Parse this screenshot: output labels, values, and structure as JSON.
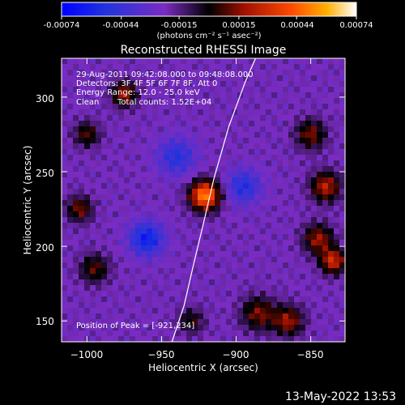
{
  "colorbar": {
    "tick_labels": [
      "-0.00074",
      "-0.00044",
      "-0.00015",
      "0.00015",
      "0.00044",
      "0.00074"
    ],
    "tick_values": [
      -0.00074,
      -0.00044,
      -0.00015,
      0.00015,
      0.00044,
      0.00074
    ],
    "units": "(photons cm⁻² s⁻¹ asec⁻²)",
    "range": [
      -0.00074,
      0.00074
    ]
  },
  "chart_data": {
    "type": "heatmap",
    "title": "Reconstructed RHESSI Image",
    "xlabel": "Heliocentric X (arcsec)",
    "ylabel": "Heliocentric Y (arcsec)",
    "xlim": [
      -1017,
      -827
    ],
    "ylim": [
      136,
      326
    ],
    "x_ticks": [
      -1000,
      -950,
      -900,
      -850
    ],
    "y_ticks": [
      150,
      200,
      250,
      300
    ],
    "x_tick_labels": [
      "−1000",
      "−950",
      "−900",
      "−850"
    ],
    "y_tick_labels": [
      "150",
      "200",
      "250",
      "300"
    ],
    "peak_position": [
      -921,
      234
    ],
    "limb_curve": [
      [
        -943,
        136
      ],
      [
        -935,
        160
      ],
      [
        -928,
        190
      ],
      [
        -922,
        215
      ],
      [
        -915,
        245
      ],
      [
        -905,
        280
      ],
      [
        -894,
        310
      ],
      [
        -887,
        326
      ]
    ],
    "sources": [
      {
        "x": -921,
        "y": 234,
        "sigma": 7,
        "amp": 0.00074
      },
      {
        "x": -975,
        "y": 302,
        "sigma": 6,
        "amp": 0.0004
      },
      {
        "x": -1000,
        "y": 275,
        "sigma": 6,
        "amp": 0.0003
      },
      {
        "x": -1005,
        "y": 225,
        "sigma": 6,
        "amp": 0.00035
      },
      {
        "x": -995,
        "y": 185,
        "sigma": 7,
        "amp": 0.0003
      },
      {
        "x": -850,
        "y": 275,
        "sigma": 7,
        "amp": 0.00035
      },
      {
        "x": -840,
        "y": 240,
        "sigma": 7,
        "amp": 0.00045
      },
      {
        "x": -845,
        "y": 205,
        "sigma": 7,
        "amp": 0.0004
      },
      {
        "x": -835,
        "y": 190,
        "sigma": 6,
        "amp": 0.0005
      },
      {
        "x": -885,
        "y": 155,
        "sigma": 8,
        "amp": 0.00035
      },
      {
        "x": -865,
        "y": 150,
        "sigma": 7,
        "amp": 0.0004
      },
      {
        "x": -930,
        "y": 150,
        "sigma": 6,
        "amp": 0.00025
      },
      {
        "x": -960,
        "y": 205,
        "sigma": 8,
        "amp": -0.0004
      },
      {
        "x": -895,
        "y": 240,
        "sigma": 8,
        "amp": -0.0003
      },
      {
        "x": -940,
        "y": 260,
        "sigma": 9,
        "amp": -0.00028
      }
    ]
  },
  "annotations": {
    "time_range": "29-Aug-2011 09:42:08.000 to 09:48:08.000",
    "detectors": "Detectors: 3F 4F 5F 6F 7F 8F, Att 0",
    "energy_range": "Energy Range: 12.0 - 25.0 keV",
    "clean": "Clean",
    "total_counts": "Total counts: 1.52E+04",
    "peak_position": "Position of Peak = [-921,234]"
  },
  "footer": {
    "timestamp": "13-May-2022 13:53"
  }
}
